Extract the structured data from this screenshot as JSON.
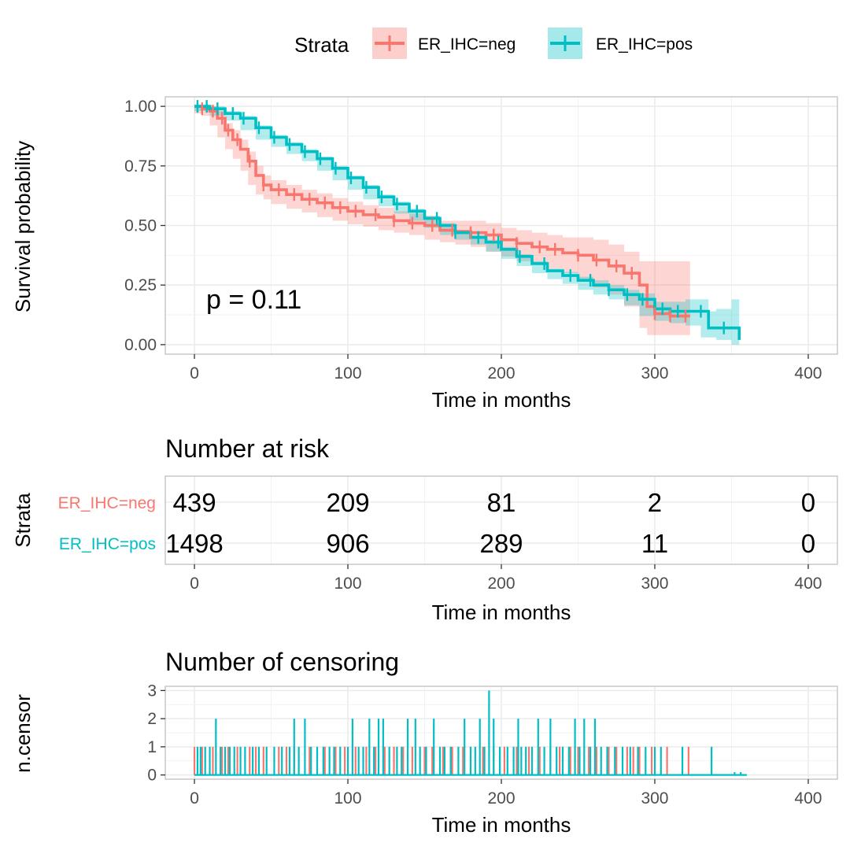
{
  "colors": {
    "neg": "#F8766D",
    "pos": "#00BFC4",
    "text": "#000000",
    "tick_text": "#4D4D4D",
    "grid": "#EBEBEB",
    "panel_border": "#BFBFBF"
  },
  "legend": {
    "title": "Strata",
    "items": [
      "ER_IHC=neg",
      "ER_IHC=pos"
    ]
  },
  "survival": {
    "ylabel": "Survival probability",
    "xlabel": "Time in months",
    "pvalue": "p = 0.11"
  },
  "risk_table": {
    "title": "Number at risk",
    "ylabel": "Strata",
    "xlabel": "Time in months"
  },
  "censor_plot": {
    "title": "Number of censoring",
    "ylabel": "n.censor",
    "xlabel": "Time in months"
  },
  "chart_data": [
    {
      "type": "line",
      "title": "",
      "xlabel": "Time in months",
      "ylabel": "Survival probability",
      "xlim": [
        -19,
        419
      ],
      "ylim": [
        -0.04,
        1.04
      ],
      "x_ticks": [
        0,
        100,
        200,
        300,
        400
      ],
      "x_tick_labels": [
        "0",
        "100",
        "200",
        "300",
        "400"
      ],
      "y_ticks": [
        0,
        0.25,
        0.5,
        0.75,
        1
      ],
      "y_tick_labels": [
        "0.00",
        "0.25",
        "0.50",
        "0.75",
        "1.00"
      ],
      "grid": true,
      "annotation": "p = 0.11",
      "series": [
        {
          "name": "ER_IHC=neg",
          "color": "#F8766D",
          "x": [
            0,
            5,
            10,
            15,
            20,
            25,
            30,
            35,
            40,
            45,
            50,
            60,
            70,
            80,
            90,
            100,
            110,
            120,
            130,
            140,
            150,
            160,
            170,
            180,
            190,
            200,
            210,
            220,
            230,
            240,
            250,
            260,
            270,
            280,
            290,
            295,
            300,
            310,
            323
          ],
          "y": [
            1.0,
            0.99,
            0.98,
            0.95,
            0.9,
            0.86,
            0.82,
            0.77,
            0.71,
            0.67,
            0.65,
            0.63,
            0.61,
            0.595,
            0.575,
            0.56,
            0.545,
            0.535,
            0.52,
            0.51,
            0.5,
            0.48,
            0.475,
            0.47,
            0.46,
            0.44,
            0.425,
            0.41,
            0.4,
            0.385,
            0.375,
            0.355,
            0.33,
            0.3,
            0.25,
            0.16,
            0.13,
            0.12,
            0.12
          ],
          "lower": [
            1.0,
            0.97,
            0.96,
            0.92,
            0.87,
            0.82,
            0.78,
            0.73,
            0.67,
            0.63,
            0.61,
            0.59,
            0.57,
            0.555,
            0.535,
            0.52,
            0.505,
            0.495,
            0.48,
            0.47,
            0.46,
            0.44,
            0.43,
            0.42,
            0.41,
            0.39,
            0.37,
            0.35,
            0.34,
            0.32,
            0.3,
            0.27,
            0.24,
            0.21,
            0.16,
            0.07,
            0.04,
            0.04,
            0.04
          ],
          "upper": [
            1.0,
            1.0,
            1.0,
            0.98,
            0.93,
            0.9,
            0.86,
            0.81,
            0.75,
            0.71,
            0.69,
            0.67,
            0.65,
            0.635,
            0.615,
            0.6,
            0.585,
            0.575,
            0.56,
            0.55,
            0.54,
            0.52,
            0.52,
            0.52,
            0.51,
            0.49,
            0.48,
            0.47,
            0.46,
            0.45,
            0.45,
            0.44,
            0.42,
            0.39,
            0.35,
            0.35,
            0.35,
            0.35,
            0.35
          ],
          "censor_x": [
            5,
            12,
            18,
            22,
            28,
            36,
            45,
            55,
            65,
            75,
            85,
            95,
            105,
            118,
            130,
            142,
            155,
            168,
            180,
            195,
            210,
            225,
            235,
            250,
            262,
            275,
            285,
            300,
            310,
            320
          ]
        },
        {
          "name": "ER_IHC=pos",
          "color": "#00BFC4",
          "x": [
            0,
            10,
            20,
            30,
            40,
            50,
            60,
            70,
            80,
            90,
            100,
            110,
            120,
            130,
            140,
            150,
            160,
            170,
            180,
            190,
            200,
            210,
            220,
            230,
            240,
            250,
            260,
            270,
            280,
            290,
            300,
            310,
            320,
            330,
            335,
            340,
            350,
            355
          ],
          "y": [
            1.0,
            0.99,
            0.97,
            0.95,
            0.91,
            0.87,
            0.84,
            0.81,
            0.78,
            0.74,
            0.7,
            0.66,
            0.62,
            0.59,
            0.56,
            0.53,
            0.5,
            0.47,
            0.45,
            0.43,
            0.4,
            0.37,
            0.34,
            0.31,
            0.29,
            0.27,
            0.25,
            0.23,
            0.21,
            0.19,
            0.15,
            0.14,
            0.14,
            0.14,
            0.07,
            0.07,
            0.07,
            0.02
          ],
          "lower": [
            1.0,
            0.98,
            0.96,
            0.94,
            0.9,
            0.86,
            0.83,
            0.8,
            0.77,
            0.73,
            0.69,
            0.65,
            0.61,
            0.58,
            0.55,
            0.52,
            0.49,
            0.46,
            0.44,
            0.42,
            0.39,
            0.36,
            0.33,
            0.3,
            0.275,
            0.255,
            0.23,
            0.21,
            0.19,
            0.165,
            0.12,
            0.1,
            0.09,
            0.08,
            0.03,
            0.03,
            0.02,
            0.0
          ],
          "upper": [
            1.0,
            1.0,
            0.98,
            0.96,
            0.92,
            0.88,
            0.85,
            0.82,
            0.79,
            0.75,
            0.71,
            0.67,
            0.63,
            0.6,
            0.57,
            0.54,
            0.51,
            0.48,
            0.46,
            0.44,
            0.41,
            0.38,
            0.35,
            0.32,
            0.305,
            0.285,
            0.27,
            0.25,
            0.23,
            0.215,
            0.18,
            0.18,
            0.19,
            0.19,
            0.14,
            0.15,
            0.19,
            0.1
          ],
          "censor_x": [
            2,
            8,
            15,
            25,
            32,
            42,
            52,
            62,
            72,
            82,
            92,
            102,
            112,
            122,
            132,
            145,
            158,
            170,
            185,
            198,
            212,
            228,
            245,
            258,
            270,
            282,
            292,
            305,
            315,
            330,
            345
          ]
        }
      ]
    },
    {
      "type": "table",
      "title": "Number at risk",
      "xlabel": "Time in months",
      "ylabel": "Strata",
      "xlim": [
        -19,
        419
      ],
      "x_ticks": [
        0,
        100,
        200,
        300,
        400
      ],
      "x_tick_labels": [
        "0",
        "100",
        "200",
        "300",
        "400"
      ],
      "rows": [
        {
          "name": "ER_IHC=neg",
          "color": "#F8766D",
          "values": [
            "439",
            "209",
            "81",
            "2",
            "0"
          ]
        },
        {
          "name": "ER_IHC=pos",
          "color": "#00BFC4",
          "values": [
            "1498",
            "906",
            "289",
            "11",
            "0"
          ]
        }
      ]
    },
    {
      "type": "bar",
      "title": "Number of censoring",
      "xlabel": "Time in months",
      "ylabel": "n.censor",
      "xlim": [
        -19,
        419
      ],
      "ylim": [
        -0.15,
        3.15
      ],
      "x_ticks": [
        0,
        100,
        200,
        300,
        400
      ],
      "x_tick_labels": [
        "0",
        "100",
        "200",
        "300",
        "400"
      ],
      "y_ticks": [
        0,
        1,
        2,
        3
      ],
      "y_tick_labels": [
        "0",
        "1",
        "2",
        "3"
      ],
      "grid": true,
      "series": [
        {
          "name": "ER_IHC=neg",
          "color": "#F8766D",
          "x": [
            0,
            5,
            12,
            18,
            22,
            28,
            36,
            40,
            45,
            55,
            60,
            65,
            75,
            85,
            92,
            98,
            105,
            112,
            118,
            124,
            130,
            136,
            142,
            150,
            155,
            162,
            168,
            175,
            180,
            188,
            195,
            202,
            210,
            218,
            225,
            232,
            238,
            245,
            250,
            257,
            262,
            270,
            275,
            282,
            286,
            290,
            298,
            308,
            322
          ],
          "counts": [
            1,
            1,
            1,
            1,
            1,
            1,
            1,
            1,
            1,
            1,
            1,
            1,
            1,
            1,
            1,
            1,
            1,
            1,
            1,
            1,
            1,
            1,
            1,
            1,
            1,
            1,
            1,
            1,
            1,
            1,
            1,
            1,
            1,
            1,
            1,
            1,
            1,
            1,
            1,
            1,
            1,
            1,
            1,
            1,
            1,
            1,
            1,
            1,
            1
          ]
        },
        {
          "name": "ER_IHC=pos",
          "color": "#00BFC4",
          "x": [
            2,
            4,
            7,
            10,
            14,
            17,
            20,
            23,
            26,
            30,
            33,
            38,
            42,
            47,
            52,
            57,
            62,
            65,
            68,
            72,
            76,
            80,
            84,
            88,
            91,
            95,
            100,
            103,
            107,
            110,
            114,
            117,
            120,
            123,
            127,
            132,
            135,
            139,
            144,
            147,
            151,
            156,
            160,
            163,
            167,
            172,
            176,
            180,
            183,
            186,
            189,
            192,
            195,
            199,
            204,
            208,
            211,
            213,
            216,
            220,
            224,
            228,
            232,
            236,
            240,
            244,
            248,
            251,
            254,
            258,
            261,
            265,
            269,
            274,
            279,
            284,
            289,
            294,
            300,
            304,
            318,
            337,
            352,
            356
          ],
          "counts": [
            1,
            1,
            1,
            1,
            2,
            1,
            1,
            1,
            1,
            1,
            1,
            1,
            1,
            1,
            1,
            1,
            1,
            2,
            1,
            2,
            1,
            1,
            1,
            1,
            1,
            1,
            1,
            2,
            1,
            1,
            2,
            1,
            2,
            2,
            1,
            1,
            1,
            2,
            2,
            1,
            1,
            2,
            1,
            1,
            1,
            1,
            2,
            1,
            1,
            2,
            1,
            3,
            2,
            1,
            1,
            1,
            2,
            1,
            1,
            1,
            2,
            1,
            2,
            1,
            1,
            1,
            2,
            1,
            2,
            1,
            2,
            1,
            1,
            1,
            1,
            1,
            1,
            1,
            1,
            1,
            1,
            1,
            0.1,
            0.1
          ]
        }
      ]
    }
  ]
}
